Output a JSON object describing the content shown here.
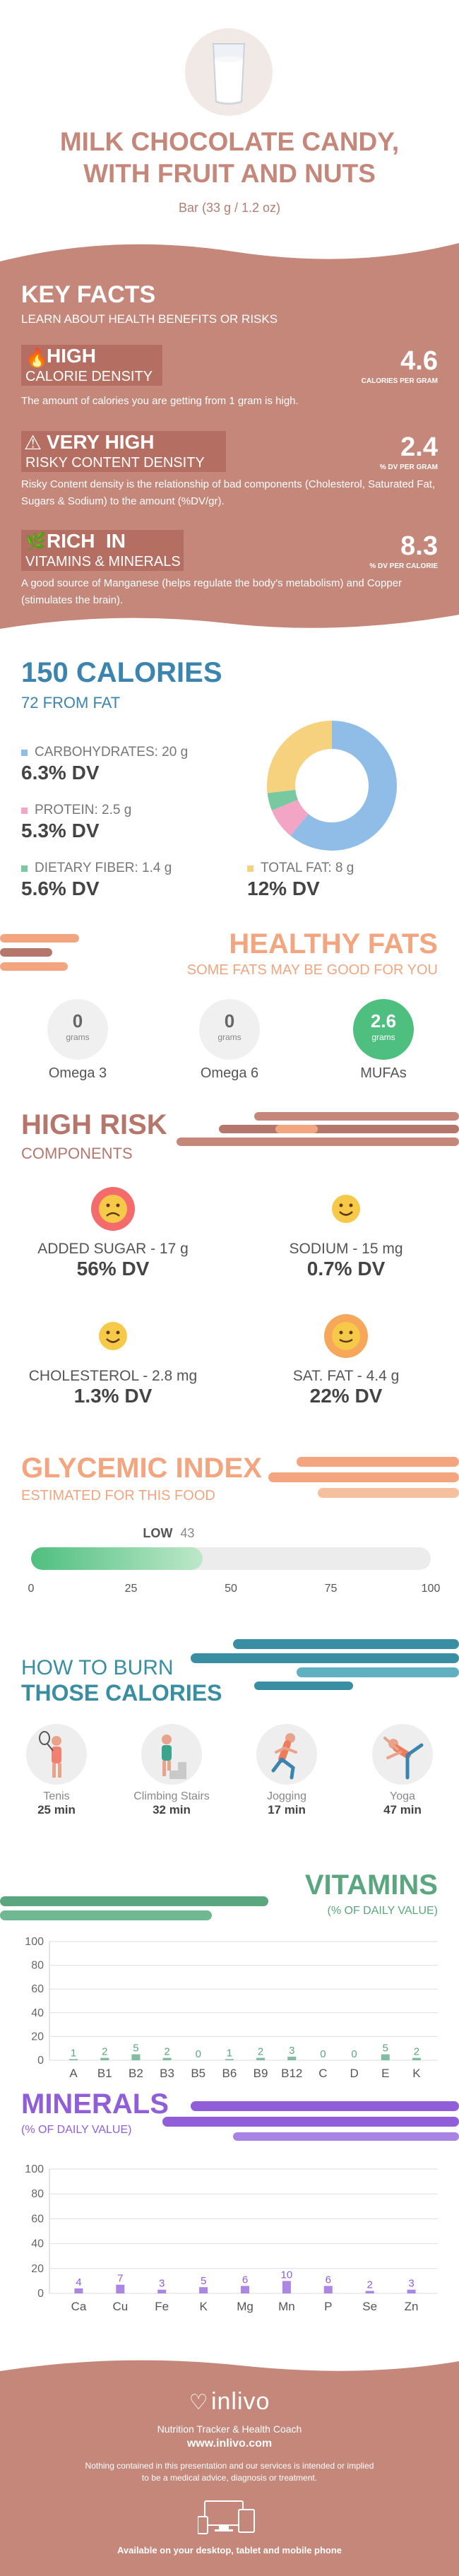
{
  "header": {
    "title_line1": "MILK CHOCOLATE CANDY,",
    "title_line2": "WITH FRUIT AND NUTS",
    "serving": "Bar (33 g / 1.2 oz)"
  },
  "colors": {
    "brand": "#c4877a",
    "brand_dark": "#b5766b",
    "salmon": "#f2a57e",
    "blue": "#3b84b0",
    "green": "#4fbf7f",
    "teal": "#3a8ea1",
    "purple": "#8f5ed8",
    "carbs": "#8fbde8",
    "protein": "#f2a5c4",
    "fiber": "#79c9a0",
    "fat": "#f6d27e"
  },
  "key_facts": {
    "title": "KEY FACTS",
    "subtitle": "LEARN ABOUT HEALTH BENEFITS OR RISKS",
    "items": [
      {
        "icon": "flame-icon",
        "level": "HIGH",
        "name": "CALORIE DENSITY",
        "value": "4.6",
        "unit": "CALORIES PER GRAM",
        "desc": "The amount of calories you are getting from 1 gram is high."
      },
      {
        "icon": "warning-icon",
        "level": "VERY HIGH",
        "name": "RISKY CONTENT DENSITY",
        "value": "2.4",
        "unit": "% DV PER GRAM",
        "desc": "Risky Content density is the relationship of bad components (Cholesterol, Saturated Fat, Sugars & Sodium) to the amount (%DV/gr)."
      },
      {
        "icon": "leaf-icon",
        "level": "RICH  IN",
        "name": "VITAMINS & MINERALS",
        "value": "8.3",
        "unit": "% DV PER CALORIE",
        "desc": "A good source of Manganese (helps regulate the body's metabolism) and Copper (stimulates the brain)."
      }
    ]
  },
  "calories": {
    "title": "150 CALORIES",
    "from_fat": "72 FROM FAT",
    "carbs_label": "CARBOHYDRATES: 20 g",
    "carbs_dv": "6.3% DV",
    "protein_label": "PROTEIN: 2.5 g",
    "protein_dv": "5.3% DV",
    "fiber_label": "DIETARY FIBER: 1.4 g",
    "fiber_dv": "5.6% DV",
    "fat_label": "TOTAL FAT: 8 g",
    "fat_dv": "12% DV"
  },
  "healthy_fats": {
    "title": "HEALTHY FATS",
    "subtitle": "SOME FATS MAY BE GOOD FOR YOU",
    "unit": "grams",
    "items": [
      {
        "value": "0",
        "label": "Omega 3"
      },
      {
        "value": "0",
        "label": "Omega 6"
      },
      {
        "value": "2.6",
        "label": "MUFAs"
      }
    ]
  },
  "high_risk": {
    "title": "HIGH RISK",
    "subtitle": "COMPONENTS",
    "items": [
      {
        "face": "sad-face-icon",
        "label": "ADDED SUGAR - 17 g",
        "dv": "56% DV"
      },
      {
        "face": "happy-face-icon",
        "label": "SODIUM - 15 mg",
        "dv": "0.7% DV"
      },
      {
        "face": "happy-face-icon",
        "label": "CHOLESTEROL - 2.8 mg",
        "dv": "1.3% DV"
      },
      {
        "face": "neutral-face-icon",
        "label": "SAT. FAT - 4.4 g",
        "dv": "22% DV"
      }
    ]
  },
  "glycemic": {
    "title": "GLYCEMIC INDEX",
    "subtitle": "ESTIMATED FOR THIS FOOD",
    "level": "LOW",
    "value": "43",
    "value_num": 43,
    "ticks": [
      "0",
      "25",
      "50",
      "75",
      "100"
    ]
  },
  "burn": {
    "title_line1": "HOW TO BURN",
    "title_line2": "THOSE CALORIES",
    "items": [
      {
        "icon": "tennis-icon",
        "label": "Tenis",
        "time": "25 min"
      },
      {
        "icon": "stairs-icon",
        "label": "Climbing Stairs",
        "time": "32 min"
      },
      {
        "icon": "jogging-icon",
        "label": "Jogging",
        "time": "17 min"
      },
      {
        "icon": "yoga-icon",
        "label": "Yoga",
        "time": "47 min"
      }
    ]
  },
  "chart_data": [
    {
      "type": "bar",
      "title": "VITAMINS",
      "subtitle": "(% OF DAILY VALUE)",
      "categories": [
        "A",
        "B1",
        "B2",
        "B3",
        "B5",
        "B6",
        "B9",
        "B12",
        "C",
        "D",
        "E",
        "K"
      ],
      "values": [
        1,
        2,
        5,
        2,
        0,
        1,
        2,
        3,
        0,
        0,
        5,
        2
      ],
      "yticks": [
        "0",
        "20",
        "40",
        "60",
        "80",
        "100"
      ],
      "ylim": [
        0,
        100
      ],
      "color": "#5aa77f"
    },
    {
      "type": "bar",
      "title": "MINERALS",
      "subtitle": "(% OF DAILY VALUE)",
      "categories": [
        "Ca",
        "Cu",
        "Fe",
        "K",
        "Mg",
        "Mn",
        "P",
        "Se",
        "Zn"
      ],
      "values": [
        4,
        7,
        3,
        5,
        6,
        10,
        6,
        2,
        3
      ],
      "yticks": [
        "0",
        "20",
        "40",
        "60",
        "80",
        "100"
      ],
      "ylim": [
        0,
        100
      ],
      "color": "#8f5ed8"
    }
  ],
  "footer": {
    "brand": "inlivo",
    "tagline": "Nutrition Tracker & Health Coach",
    "url": "www.inlivo.com",
    "disclaimer_line1": "Nothing contained in this presentation and our services is intended or implied",
    "disclaimer_line2": "to be a medical advice, diagnosis or treatment.",
    "available": "Available on your desktop, tablet and mobile phone"
  }
}
